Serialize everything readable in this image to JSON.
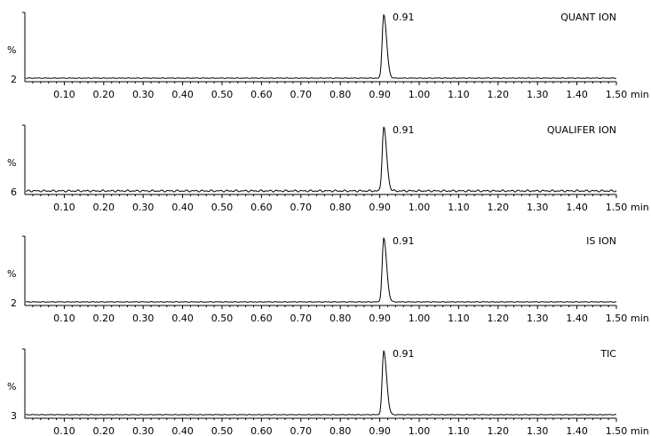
{
  "chart_data": [
    {
      "type": "line",
      "label": "QUANT ION",
      "ylabel": "%",
      "y_baseline_label": "2",
      "peak": {
        "x": 0.91,
        "label": "0.91"
      },
      "xlim": [
        0.0,
        1.5
      ],
      "x_ticks": [
        "0.10",
        "0.20",
        "0.30",
        "0.40",
        "0.50",
        "0.60",
        "0.70",
        "0.80",
        "0.90",
        "1.00",
        "1.10",
        "1.20",
        "1.30",
        "1.40",
        "1.50"
      ],
      "x_unit": "min"
    },
    {
      "type": "line",
      "label": "QUALIFER ION",
      "ylabel": "%",
      "y_baseline_label": "6",
      "peak": {
        "x": 0.91,
        "label": "0.91"
      },
      "xlim": [
        0.0,
        1.5
      ],
      "x_ticks": [
        "0.10",
        "0.20",
        "0.30",
        "0.40",
        "0.50",
        "0.60",
        "0.70",
        "0.80",
        "0.90",
        "1.00",
        "1.10",
        "1.20",
        "1.30",
        "1.40",
        "1.50"
      ],
      "x_unit": "min"
    },
    {
      "type": "line",
      "label": "IS ION",
      "ylabel": "%",
      "y_baseline_label": "2",
      "peak": {
        "x": 0.91,
        "label": "0.91"
      },
      "xlim": [
        0.0,
        1.5
      ],
      "x_ticks": [
        "0.10",
        "0.20",
        "0.30",
        "0.40",
        "0.50",
        "0.60",
        "0.70",
        "0.80",
        "0.90",
        "1.00",
        "1.10",
        "1.20",
        "1.30",
        "1.40",
        "1.50"
      ],
      "x_unit": "min"
    },
    {
      "type": "line",
      "label": "TIC",
      "ylabel": "%",
      "y_baseline_label": "3",
      "peak": {
        "x": 0.91,
        "label": "0.91"
      },
      "xlim": [
        0.0,
        1.5
      ],
      "x_ticks": [
        "0.10",
        "0.20",
        "0.30",
        "0.40",
        "0.50",
        "0.60",
        "0.70",
        "0.80",
        "0.90",
        "1.00",
        "1.10",
        "1.20",
        "1.30",
        "1.40",
        "1.50"
      ],
      "x_unit": "min"
    }
  ]
}
